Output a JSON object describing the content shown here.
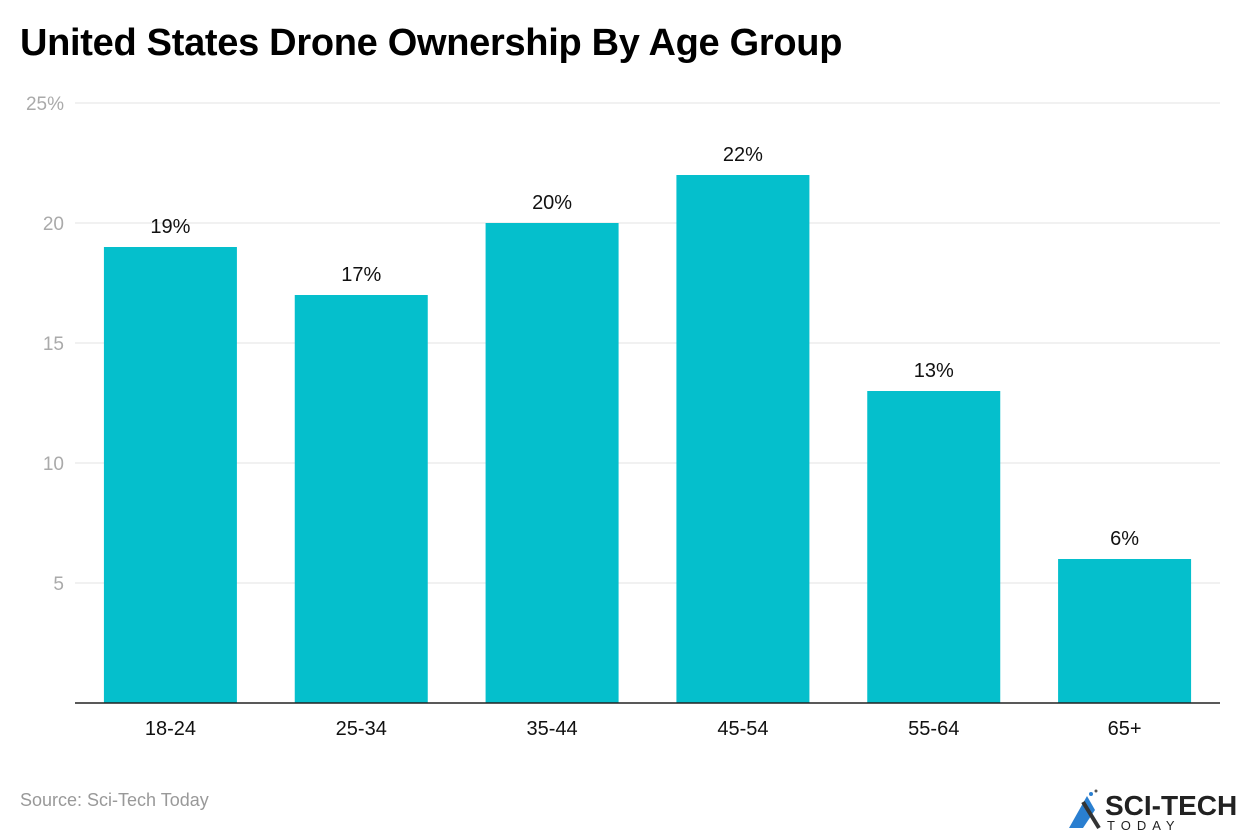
{
  "chart_data": {
    "type": "bar",
    "title": "United States Drone Ownership By Age Group",
    "categories": [
      "18-24",
      "25-34",
      "35-44",
      "45-54",
      "55-64",
      "65+"
    ],
    "values": [
      19,
      17,
      20,
      22,
      13,
      6
    ],
    "data_labels": [
      "19%",
      "17%",
      "20%",
      "22%",
      "13%",
      "6%"
    ],
    "y_ticks": [
      5,
      10,
      15,
      20,
      25
    ],
    "y_tick_labels": [
      "5",
      "10",
      "15",
      "20",
      "25%"
    ],
    "ylim": [
      0,
      25
    ],
    "xlabel": "",
    "ylabel": "",
    "grid": true,
    "bar_color": "#05BFCC"
  },
  "source": "Source: Sci-Tech Today",
  "logo": {
    "line1": "SCI-TECH",
    "line2": "TODAY"
  }
}
